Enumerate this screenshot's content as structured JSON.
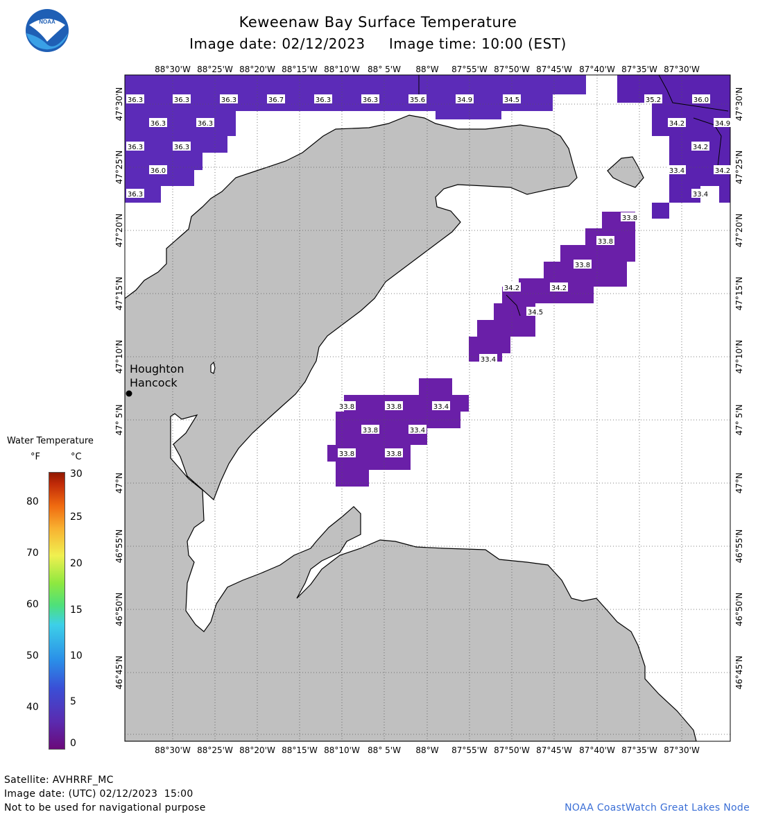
{
  "header": {
    "title": "Keweenaw Bay Surface Temperature",
    "image_date_label": "Image date: 02/12/2023",
    "image_time_label": "Image time: 10:00 (EST)"
  },
  "logo": {
    "text": "NOAA",
    "icon": "noaa-logo-icon"
  },
  "legend": {
    "title": "Water Temperature",
    "unit_f": "°F",
    "unit_c": "°C",
    "f_ticks": [
      "40",
      "50",
      "60",
      "70",
      "80"
    ],
    "c_ticks": [
      "0",
      "5",
      "10",
      "15",
      "20",
      "25",
      "30"
    ]
  },
  "map": {
    "lon_labels": [
      "88°30'W",
      "88°25'W",
      "88°20'W",
      "88°15'W",
      "88°10'W",
      "88° 5'W",
      "88°W",
      "87°55'W",
      "87°50'W",
      "87°45'W",
      "87°40'W",
      "87°35'W",
      "87°30'W"
    ],
    "lat_labels": [
      "47°30'N",
      "47°25'N",
      "47°20'N",
      "47°15'N",
      "47°10'N",
      "47° 5'N",
      "47°N",
      "46°55'N",
      "46°50'N",
      "46°45'N"
    ],
    "place_labels": [
      "Houghton",
      "Hancock"
    ],
    "temperature_labels": [
      "36.3",
      "36.3",
      "36.3",
      "36.7",
      "36.3",
      "36.3",
      "35.6",
      "34.9",
      "34.5",
      "35.2",
      "36.0",
      "36.3",
      "36.3",
      "34.2",
      "34.9",
      "36.3",
      "36.3",
      "34.2",
      "36.0",
      "33.4",
      "34.2",
      "36.3",
      "33.4",
      "33.8",
      "33.8",
      "33.8",
      "34.2",
      "34.2",
      "34.5",
      "33.4",
      "33.8",
      "33.8",
      "33.4",
      "33.8",
      "33.4",
      "33.8",
      "33.8"
    ]
  },
  "footer": {
    "satellite": "Satellite: AVHRRF_MC",
    "utc_date": "Image date: (UTC) 02/12/2023  15:00",
    "disclaimer": "Not to be used for navigational purpose",
    "credit": "NOAA CoastWatch Great Lakes Node"
  }
}
